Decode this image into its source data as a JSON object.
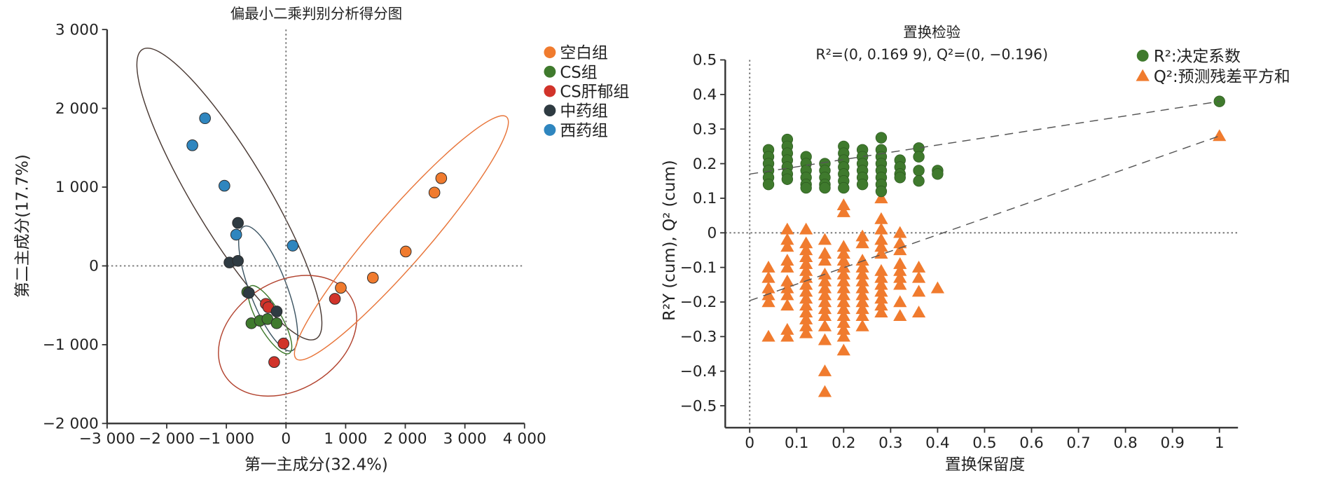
{
  "chart_data": [
    {
      "type": "scatter",
      "title": "偏最小二乘判别分析得分图",
      "xlabel": "第一主成分(32.4%)",
      "ylabel": "第二主成分(17.7%)",
      "xlim": [
        -3000,
        4000
      ],
      "ylim": [
        -2000,
        3000
      ],
      "xticks": [
        -3000,
        -2000,
        -1000,
        0,
        1000,
        2000,
        3000,
        4000
      ],
      "xtick_labels": [
        "−3 000",
        "−2 000",
        "−1 000",
        "0",
        "1 000",
        "2 000",
        "3 000",
        "4 000"
      ],
      "yticks": [
        3000,
        2000,
        1000,
        0,
        -1000,
        -2000
      ],
      "ytick_labels": [
        "3 000",
        "2 000",
        "1 000",
        "0",
        "−1 000",
        "−2 000"
      ],
      "reference_lines": {
        "x": 0,
        "y": 0,
        "style": "dotted"
      },
      "legend_placement": "right",
      "series": [
        {
          "name": "空白组",
          "color": "#f07b2e",
          "ellipse": "#e8753a",
          "points": [
            [
              2603,
              1113
            ],
            [
              2489,
              931
            ],
            [
              2008,
              182
            ],
            [
              1457,
              -150
            ],
            [
              919,
              -278
            ]
          ]
        },
        {
          "name": "CS组",
          "color": "#3f7a2d",
          "ellipse": "#3f7a2d",
          "points": [
            [
              -650,
              -332
            ],
            [
              -580,
              -728
            ],
            [
              -438,
              -696
            ],
            [
              -311,
              -675
            ],
            [
              -156,
              -728
            ]
          ]
        },
        {
          "name": "CS肝郁组",
          "color": "#d1332a",
          "ellipse": "#b2432f",
          "points": [
            [
              -339,
              -482
            ],
            [
              -297,
              -525
            ],
            [
              820,
              -418
            ],
            [
              -42,
              -985
            ],
            [
              -198,
              -1221
            ]
          ]
        },
        {
          "name": "中药组",
          "color": "#2f3b42",
          "ellipse": "#3d5563",
          "points": [
            [
              -806,
              546
            ],
            [
              -948,
              43
            ],
            [
              -806,
              64
            ],
            [
              -622,
              -343
            ],
            [
              -156,
              -578
            ]
          ]
        },
        {
          "name": "西药组",
          "color": "#2f86bf",
          "ellipse": "#4a3a34",
          "points": [
            [
              -1358,
              1874
            ],
            [
              -1570,
              1531
            ],
            [
              -1033,
              1017
            ],
            [
              -835,
              396
            ],
            [
              113,
              257
            ]
          ]
        }
      ]
    },
    {
      "type": "scatter",
      "title": "置换检验",
      "subtitle": "R²=(0, 0.169 9), Q²=(0, −0.196)",
      "xlabel": "置换保留度",
      "ylabel": "R²Y (cum), Q² (cum)",
      "xlim": [
        0,
        1
      ],
      "ylim": [
        -0.5,
        0.5
      ],
      "xticks": [
        0,
        0.1,
        0.2,
        0.3,
        0.4,
        0.5,
        0.6,
        0.7,
        0.8,
        0.9,
        1
      ],
      "xtick_labels": [
        "0",
        "0.1",
        "0.2",
        "0.3",
        "0.4",
        "0.5",
        "0.6",
        "0.7",
        "0.8",
        "0.9",
        "1"
      ],
      "yticks": [
        0.5,
        0.4,
        0.3,
        0.2,
        0.1,
        0,
        -0.1,
        -0.2,
        -0.3,
        -0.4,
        -0.5
      ],
      "ytick_labels": [
        "0.5",
        "0.4",
        "0.3",
        "0.2",
        "0.1",
        "0",
        "−0.1",
        "−0.2",
        "−0.3",
        "−0.4",
        "−0.5"
      ],
      "reference_lines": {
        "x": 0,
        "y": 0,
        "style": "dotted"
      },
      "legend_placement": "top-right",
      "series": [
        {
          "name": "R²:决定系数",
          "marker": "circle",
          "color": "#3f7a2d",
          "columns": [
            {
              "x": 0.04,
              "y": [
                0.24,
                0.22,
                0.2,
                0.18,
                0.16,
                0.14
              ]
            },
            {
              "x": 0.08,
              "y": [
                0.27,
                0.25,
                0.23,
                0.21,
                0.19,
                0.17,
                0.155
              ]
            },
            {
              "x": 0.12,
              "y": [
                0.22,
                0.2,
                0.18,
                0.16,
                0.14,
                0.13
              ]
            },
            {
              "x": 0.16,
              "y": [
                0.2,
                0.18,
                0.16,
                0.14,
                0.13
              ]
            },
            {
              "x": 0.2,
              "y": [
                0.25,
                0.23,
                0.21,
                0.19,
                0.17,
                0.15,
                0.13
              ]
            },
            {
              "x": 0.24,
              "y": [
                0.24,
                0.22,
                0.2,
                0.18,
                0.16,
                0.14
              ]
            },
            {
              "x": 0.28,
              "y": [
                0.275,
                0.24,
                0.22,
                0.2,
                0.18,
                0.16,
                0.14,
                0.12
              ]
            },
            {
              "x": 0.32,
              "y": [
                0.21,
                0.19,
                0.17,
                0.16
              ]
            },
            {
              "x": 0.36,
              "y": [
                0.245,
                0.22,
                0.18,
                0.15
              ]
            },
            {
              "x": 0.4,
              "y": [
                0.18,
                0.17
              ]
            },
            {
              "x": 1,
              "y": [
                0.38
              ]
            }
          ],
          "regression": [
            [
              0,
              0.1699
            ],
            [
              1,
              0.38
            ]
          ]
        },
        {
          "name": "Q²:预测残差平方和",
          "marker": "triangle",
          "color": "#f07b2e",
          "columns": [
            {
              "x": 0.04,
              "y": [
                -0.1,
                -0.13,
                -0.16,
                -0.18,
                -0.2,
                -0.3
              ]
            },
            {
              "x": 0.08,
              "y": [
                0.01,
                -0.02,
                -0.04,
                -0.08,
                -0.1,
                -0.14,
                -0.16,
                -0.18,
                -0.21,
                -0.28,
                -0.3
              ]
            },
            {
              "x": 0.12,
              "y": [
                0.01,
                -0.03,
                -0.05,
                -0.07,
                -0.09,
                -0.11,
                -0.13,
                -0.15,
                -0.17,
                -0.19,
                -0.21,
                -0.23,
                -0.25,
                -0.27,
                -0.29
              ]
            },
            {
              "x": 0.16,
              "y": [
                -0.02,
                -0.06,
                -0.08,
                -0.12,
                -0.14,
                -0.16,
                -0.18,
                -0.2,
                -0.22,
                -0.24,
                -0.27,
                -0.31,
                -0.4,
                -0.46
              ]
            },
            {
              "x": 0.2,
              "y": [
                0.08,
                0.06,
                -0.04,
                -0.06,
                -0.08,
                -0.1,
                -0.12,
                -0.14,
                -0.16,
                -0.18,
                -0.2,
                -0.22,
                -0.24,
                -0.26,
                -0.28,
                -0.3,
                -0.34
              ]
            },
            {
              "x": 0.24,
              "y": [
                -0.01,
                -0.03,
                -0.08,
                -0.1,
                -0.12,
                -0.14,
                -0.16,
                -0.18,
                -0.2,
                -0.22,
                -0.24,
                -0.27
              ]
            },
            {
              "x": 0.28,
              "y": [
                0.1,
                0.04,
                0.01,
                -0.02,
                -0.04,
                -0.06,
                -0.11,
                -0.13,
                -0.15,
                -0.17,
                -0.19,
                -0.21,
                -0.23
              ]
            },
            {
              "x": 0.32,
              "y": [
                0.0,
                -0.03,
                -0.05,
                -0.09,
                -0.11,
                -0.13,
                -0.15,
                -0.2,
                -0.24
              ]
            },
            {
              "x": 0.36,
              "y": [
                -0.1,
                -0.13,
                -0.17,
                -0.23
              ]
            },
            {
              "x": 0.4,
              "y": [
                -0.16
              ]
            },
            {
              "x": 1,
              "y": [
                0.28
              ]
            }
          ],
          "regression": [
            [
              0,
              -0.196
            ],
            [
              1,
              0.28
            ]
          ]
        }
      ]
    }
  ]
}
